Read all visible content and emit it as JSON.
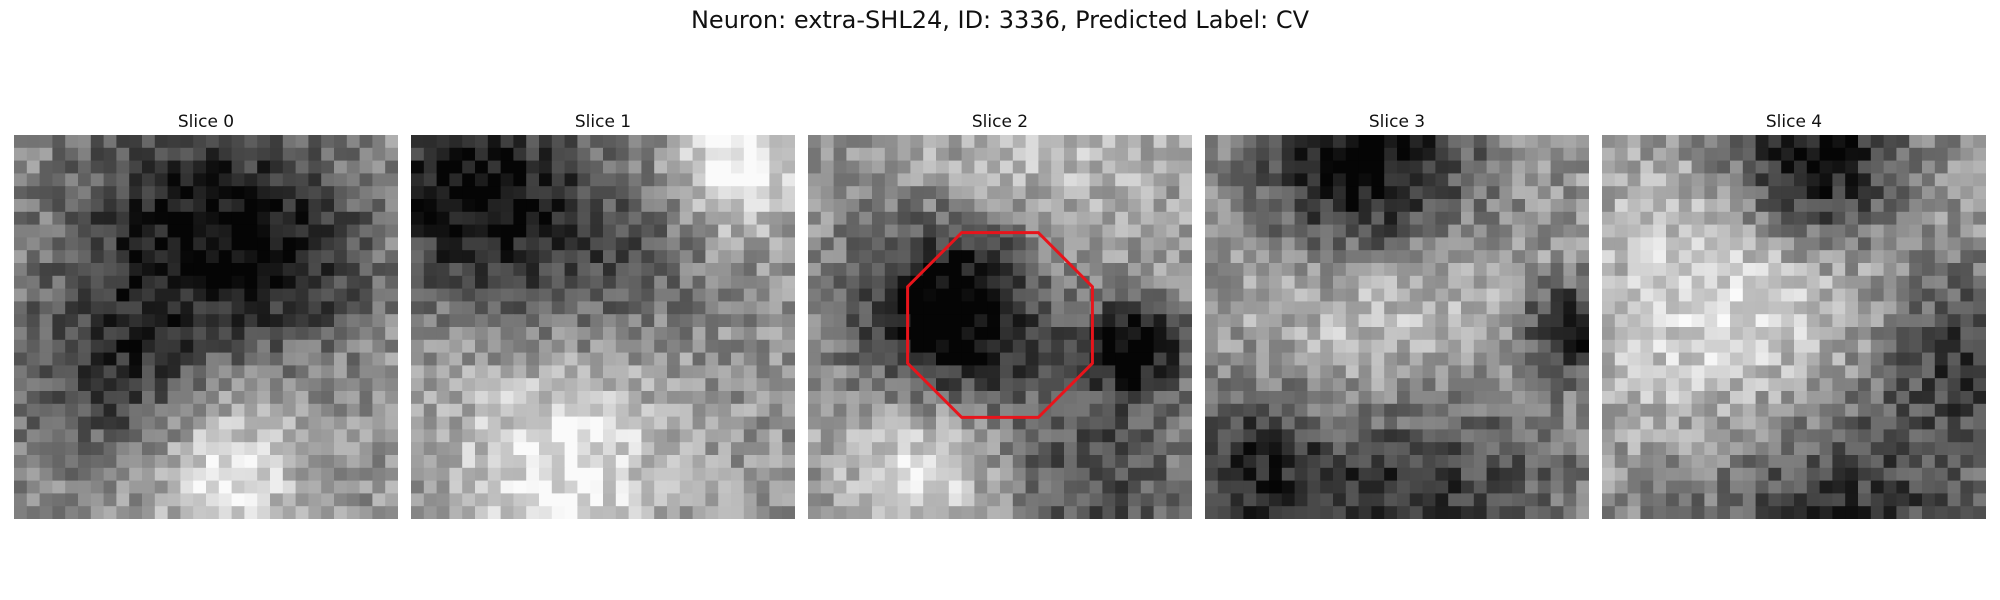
{
  "figure": {
    "title": "Neuron: extra-SHL24, ID: 3336, Predicted Label: CV"
  },
  "panels": [
    {
      "title": "Slice 0",
      "seed": 11,
      "blobs": [
        [
          0.45,
          0.22,
          0.22,
          -0.45
        ],
        [
          0.25,
          0.62,
          0.18,
          -0.35
        ],
        [
          0.72,
          0.32,
          0.16,
          -0.35
        ],
        [
          0.55,
          0.88,
          0.14,
          0.35
        ]
      ]
    },
    {
      "title": "Slice 1",
      "seed": 23,
      "blobs": [
        [
          0.15,
          0.15,
          0.18,
          -0.55
        ],
        [
          0.5,
          0.3,
          0.2,
          -0.25
        ],
        [
          0.85,
          0.08,
          0.12,
          0.45
        ],
        [
          0.4,
          0.85,
          0.2,
          0.35
        ]
      ]
    },
    {
      "title": "Slice 2",
      "seed": 37,
      "blobs": [
        [
          0.38,
          0.45,
          0.18,
          -0.75
        ],
        [
          0.85,
          0.55,
          0.09,
          -0.6
        ],
        [
          0.3,
          0.85,
          0.15,
          0.35
        ],
        [
          0.75,
          0.9,
          0.18,
          -0.3
        ],
        [
          0.55,
          0.12,
          0.25,
          0.2
        ]
      ]
    },
    {
      "title": "Slice 3",
      "seed": 51,
      "blobs": [
        [
          0.42,
          0.1,
          0.2,
          -0.7
        ],
        [
          0.45,
          0.45,
          0.25,
          0.4
        ],
        [
          0.95,
          0.5,
          0.08,
          -0.55
        ],
        [
          0.5,
          0.95,
          0.3,
          -0.45
        ],
        [
          0.1,
          0.85,
          0.14,
          -0.3
        ]
      ]
    },
    {
      "title": "Slice 4",
      "seed": 67,
      "blobs": [
        [
          0.55,
          0.08,
          0.16,
          -0.65
        ],
        [
          0.4,
          0.5,
          0.3,
          0.4
        ],
        [
          0.6,
          0.95,
          0.3,
          -0.45
        ],
        [
          0.95,
          0.55,
          0.15,
          -0.35
        ]
      ]
    }
  ],
  "overlay": {
    "panel_index": 2,
    "shape": "octagon",
    "color": "#e8141b"
  },
  "render": {
    "grid": 30,
    "colormap": "gray"
  }
}
